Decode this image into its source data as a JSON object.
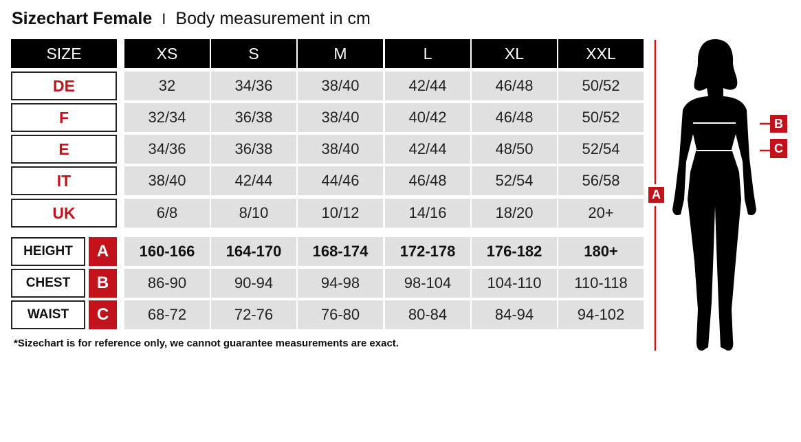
{
  "title": {
    "bold": "Sizechart Female",
    "separator": "I",
    "subtitle": "Body measurement in cm"
  },
  "header": {
    "label": "SIZE",
    "sizes": [
      "XS",
      "S",
      "M",
      "L",
      "XL",
      "XXL"
    ]
  },
  "size_rows": [
    {
      "label": "DE",
      "values": [
        "32",
        "34/36",
        "38/40",
        "42/44",
        "46/48",
        "50/52"
      ]
    },
    {
      "label": "F",
      "values": [
        "32/34",
        "36/38",
        "38/40",
        "40/42",
        "46/48",
        "50/52"
      ]
    },
    {
      "label": "E",
      "values": [
        "34/36",
        "36/38",
        "38/40",
        "42/44",
        "48/50",
        "52/54"
      ]
    },
    {
      "label": "IT",
      "values": [
        "38/40",
        "42/44",
        "44/46",
        "46/48",
        "52/54",
        "56/58"
      ]
    },
    {
      "label": "UK",
      "values": [
        "6/8",
        "8/10",
        "10/12",
        "14/16",
        "18/20",
        "20+"
      ]
    }
  ],
  "measurement_rows": [
    {
      "label": "HEIGHT",
      "letter": "A",
      "values": [
        "160-166",
        "164-170",
        "168-174",
        "172-178",
        "176-182",
        "180+"
      ]
    },
    {
      "label": "CHEST",
      "letter": "B",
      "values": [
        "86-90",
        "90-94",
        "94-98",
        "98-104",
        "104-110",
        "110-118"
      ]
    },
    {
      "label": "WAIST",
      "letter": "C",
      "values": [
        "68-72",
        "72-76",
        "76-80",
        "80-84",
        "84-94",
        "94-102"
      ]
    }
  ],
  "figure": {
    "height_marker": "A",
    "chest_marker": "B",
    "waist_marker": "C"
  },
  "footnote": "*Sizechart is for reference only, we cannot guarantee measurements are exact.",
  "colors": {
    "accent": "#c2121c",
    "header_bg": "#000000",
    "cell_bg": "#e0e0e0"
  }
}
